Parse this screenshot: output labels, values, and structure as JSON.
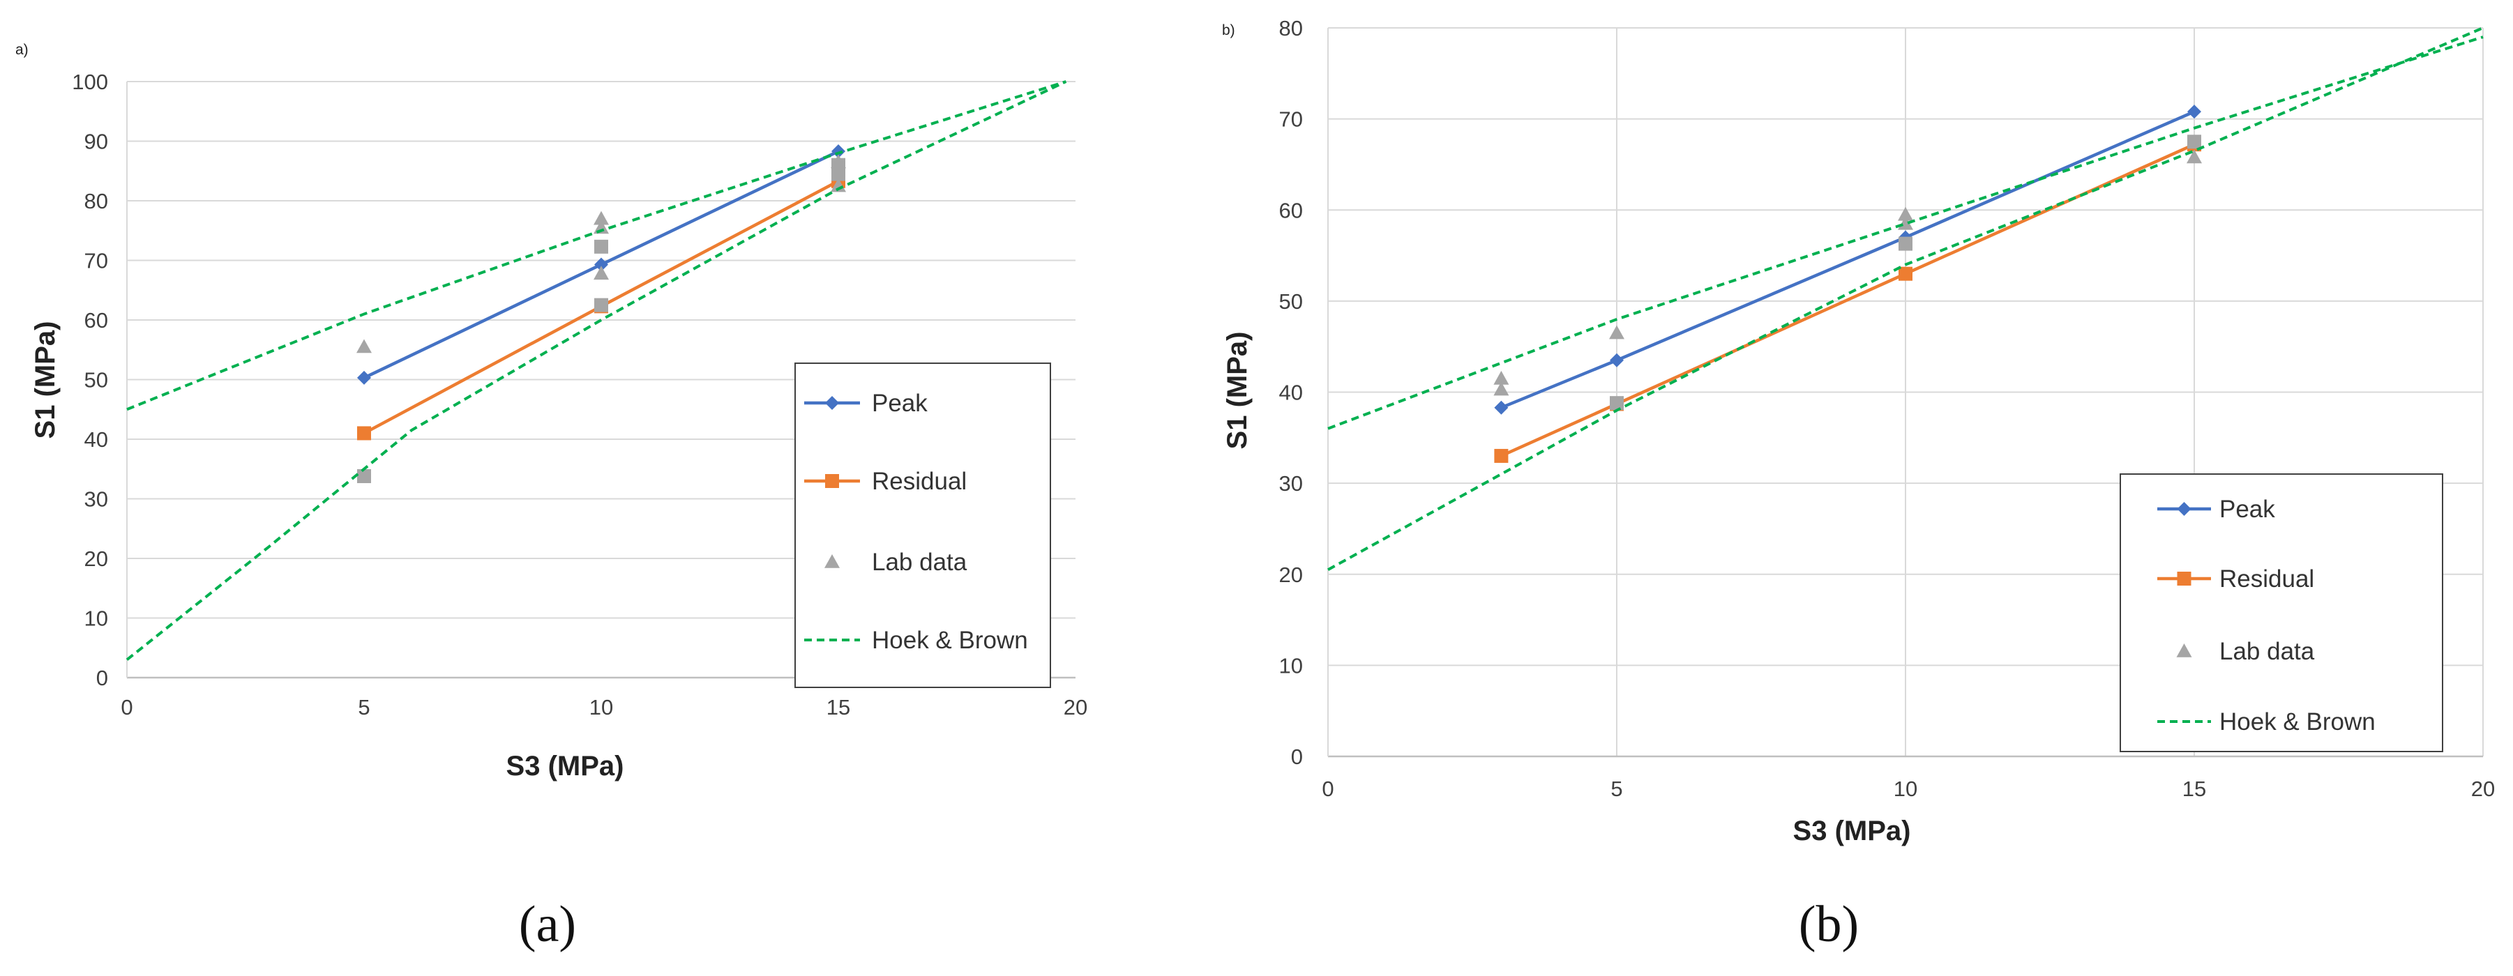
{
  "chart_data": [
    {
      "type": "line",
      "panel_tag": "a)",
      "caption": "(a)",
      "xlabel": "S3 (MPa)",
      "ylabel": "S1 (MPa)",
      "xlim": [
        0,
        20
      ],
      "ylim": [
        0,
        100
      ],
      "x_ticks": [
        "0",
        "5",
        "10",
        "15",
        "20"
      ],
      "y_ticks": [
        "0",
        "10",
        "20",
        "30",
        "40",
        "50",
        "60",
        "70",
        "80",
        "90",
        "100"
      ],
      "grid": "horizontal",
      "legend_position": "right",
      "series": [
        {
          "name": "Peak",
          "style": "line-diamond",
          "color": "#4472C4",
          "points": [
            [
              5,
              50.3
            ],
            [
              10,
              69.3
            ],
            [
              15,
              88.3
            ]
          ]
        },
        {
          "name": "Residual",
          "style": "line-square",
          "color": "#ED7D31",
          "points": [
            [
              5,
              41
            ],
            [
              10,
              62.3
            ],
            [
              15,
              83.3
            ]
          ]
        },
        {
          "name": "Lab data",
          "style": "markers",
          "color": "#A5A5A5",
          "triangles": [
            [
              5,
              55.5
            ],
            [
              10,
              77
            ],
            [
              10,
              75.5
            ],
            [
              10,
              67.8
            ],
            [
              15,
              86.5
            ],
            [
              15,
              82.5
            ]
          ],
          "squares": [
            [
              5,
              33.8
            ],
            [
              10,
              72.3
            ],
            [
              10,
              62.5
            ],
            [
              15,
              86
            ],
            [
              15,
              84.5
            ]
          ]
        },
        {
          "name": "Hoek & Brown",
          "style": "dashed",
          "color": "#00B050",
          "lines": [
            [
              [
                0,
                45
              ],
              [
                5,
                61
              ],
              [
                10,
                75
              ],
              [
                15,
                88
              ],
              [
                19.8,
                100
              ]
            ],
            [
              [
                0,
                3
              ],
              [
                3,
                22
              ],
              [
                6,
                41.5
              ],
              [
                10,
                60
              ],
              [
                15,
                82
              ],
              [
                19.8,
                100
              ]
            ]
          ]
        }
      ]
    },
    {
      "type": "line",
      "panel_tag": "b)",
      "caption": "(b)",
      "xlabel": "S3 (MPa)",
      "ylabel": "S1 (MPa)",
      "xlim": [
        0,
        20
      ],
      "ylim": [
        0,
        80
      ],
      "x_ticks": [
        "0",
        "5",
        "10",
        "15",
        "20"
      ],
      "y_ticks": [
        "0",
        "10",
        "20",
        "30",
        "40",
        "50",
        "60",
        "70",
        "80"
      ],
      "grid": "both",
      "legend_position": "bottom-right",
      "series": [
        {
          "name": "Peak",
          "style": "line-diamond",
          "color": "#4472C4",
          "points": [
            [
              3,
              38.3
            ],
            [
              5,
              43.5
            ],
            [
              10,
              57
            ],
            [
              15,
              70.8
            ]
          ]
        },
        {
          "name": "Residual",
          "style": "line-square",
          "color": "#ED7D31",
          "points": [
            [
              3,
              33
            ],
            [
              5,
              38.7
            ],
            [
              10,
              53
            ],
            [
              15,
              67.2
            ]
          ]
        },
        {
          "name": "Lab data",
          "style": "markers",
          "color": "#A5A5A5",
          "triangles": [
            [
              3,
              41.5
            ],
            [
              3,
              40.3
            ],
            [
              5,
              46.5
            ],
            [
              10,
              59.5
            ],
            [
              10,
              58.5
            ],
            [
              15,
              65.8
            ]
          ],
          "squares": [
            [
              5,
              38.8
            ],
            [
              10,
              56.3
            ],
            [
              15,
              67.5
            ]
          ]
        },
        {
          "name": "Hoek & Brown",
          "style": "dashed",
          "color": "#00B050",
          "lines": [
            [
              [
                0,
                36
              ],
              [
                5,
                48
              ],
              [
                10,
                58.5
              ],
              [
                15,
                69
              ],
              [
                20,
                79
              ]
            ],
            [
              [
                0,
                20.5
              ],
              [
                3,
                31
              ],
              [
                5,
                38
              ],
              [
                10,
                54
              ],
              [
                15,
                66.5
              ],
              [
                20,
                80
              ]
            ]
          ]
        }
      ]
    }
  ]
}
